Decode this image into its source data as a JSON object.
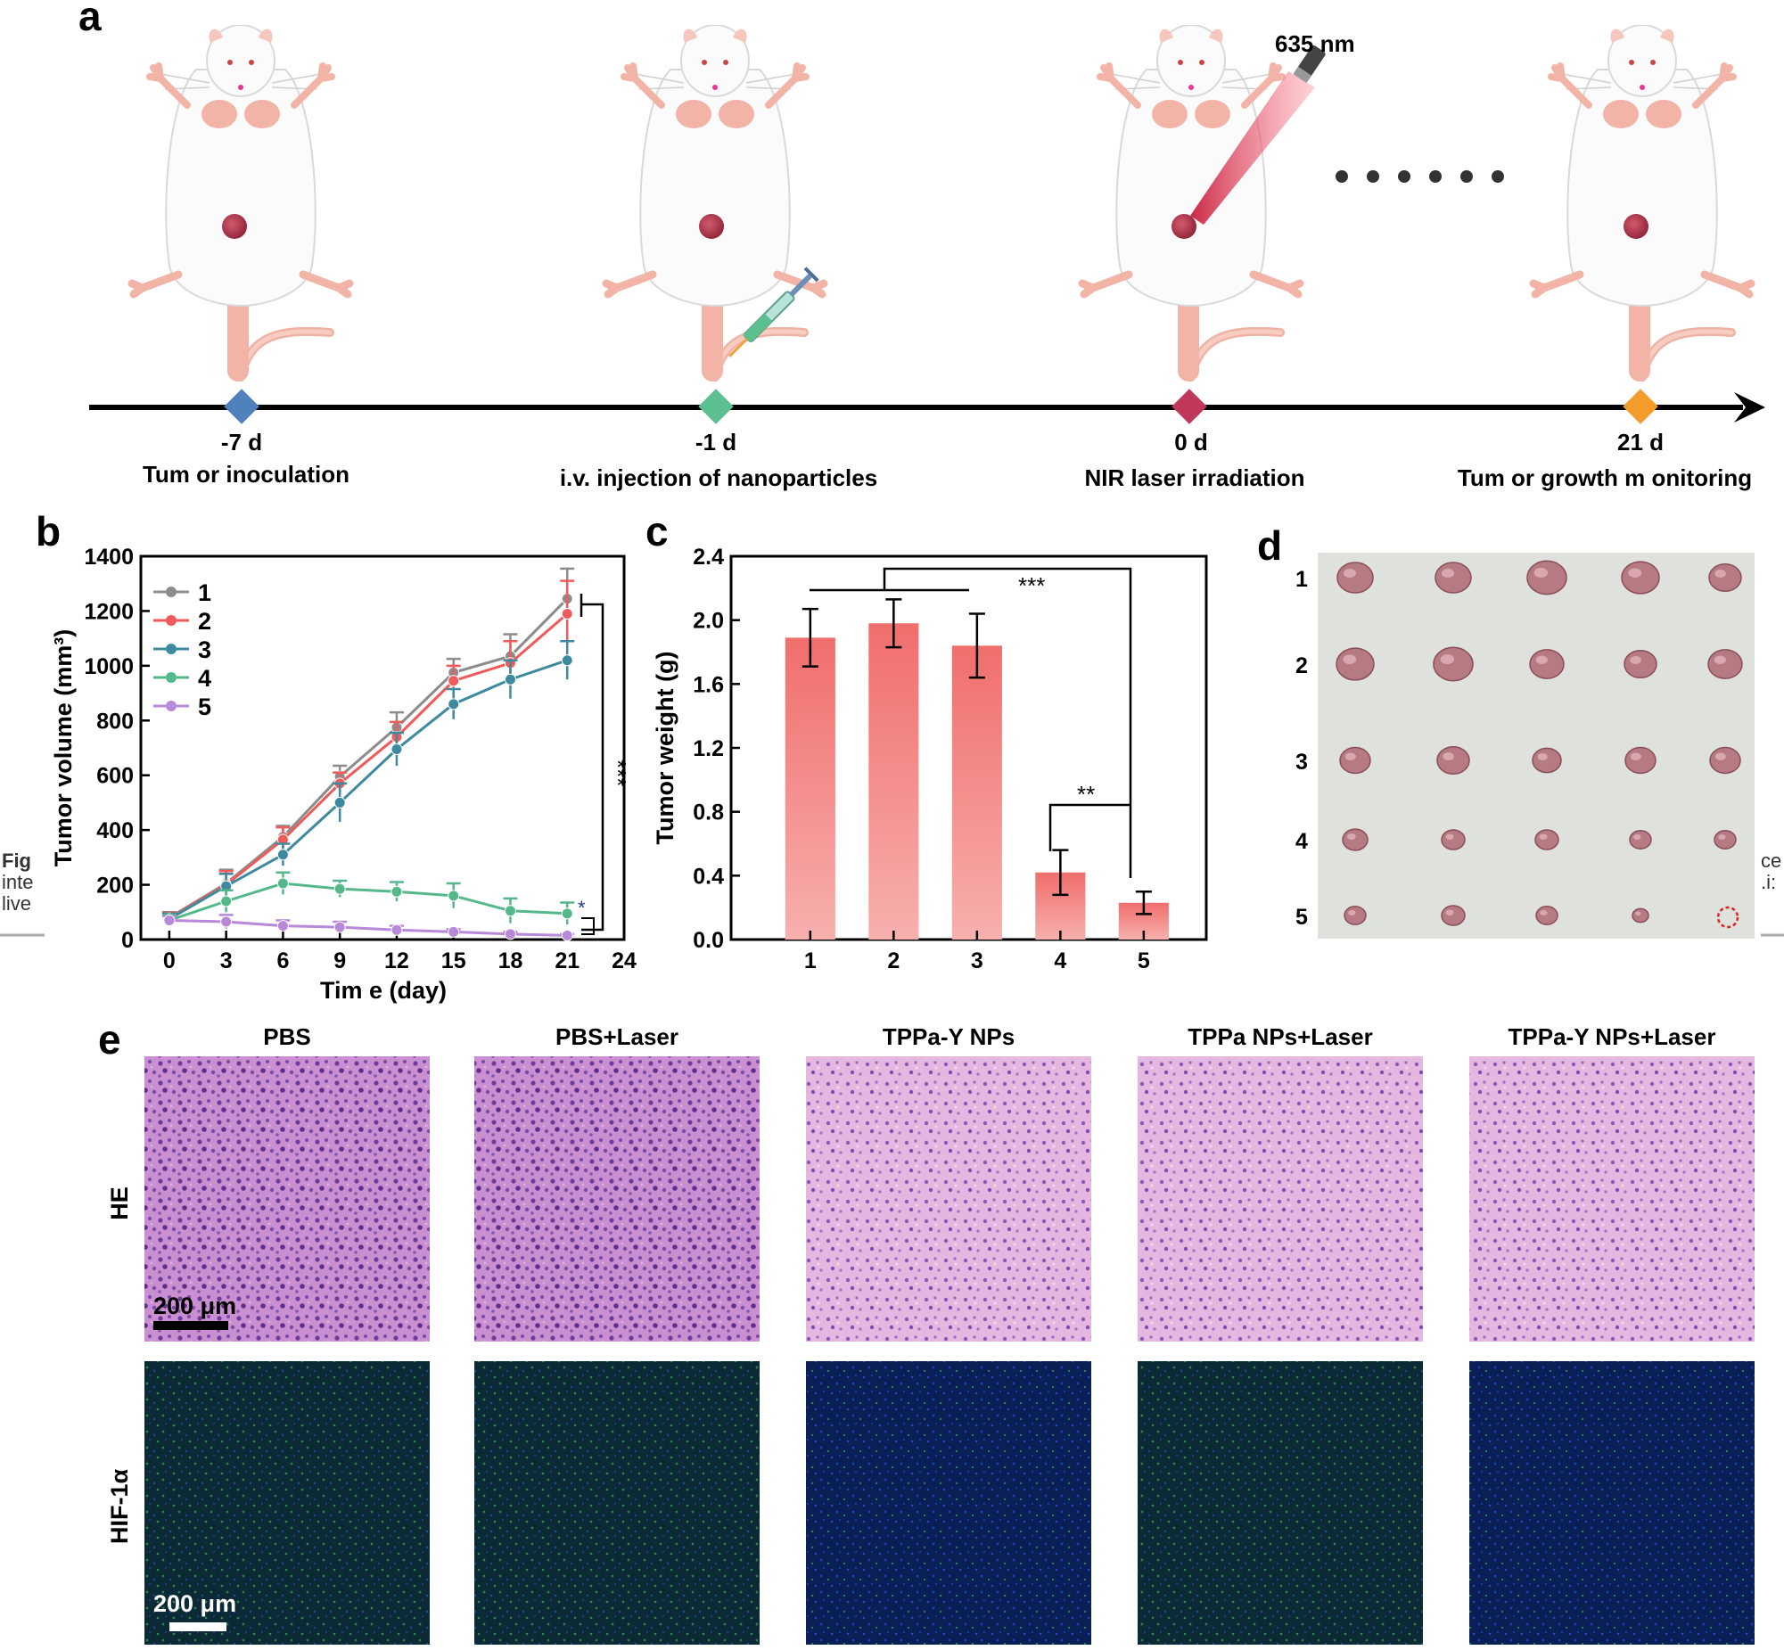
{
  "panel_a": {
    "label": "a",
    "laser_label": "635 nm",
    "timeline": [
      {
        "day": "-7 d",
        "event": "Tum or inoculation",
        "color": "#4f81bd"
      },
      {
        "day": "-1 d",
        "event": "i.v. injection of nanoparticles",
        "color": "#5cbf8f"
      },
      {
        "day": "0 d",
        "event": "NIR laser irradiation",
        "color": "#c0395a"
      },
      {
        "day": "21 d",
        "event": "Tum or growth m onitoring",
        "color": "#f39c2b"
      }
    ]
  },
  "panel_b": {
    "label": "b"
  },
  "panel_c": {
    "label": "c"
  },
  "panel_d": {
    "label": "d",
    "row_labels": [
      "1",
      "2",
      "3",
      "4",
      "5"
    ]
  },
  "panel_e": {
    "label": "e",
    "columns": [
      "PBS",
      "PBS+Laser",
      "TPPa-Y NPs",
      "TPPa NPs+Laser",
      "TPPa-Y NPs+Laser"
    ],
    "rows": [
      "HE",
      "HIF-1α"
    ],
    "scale_bar": "200 μm"
  },
  "bleed_text": {
    "left": [
      "Fig",
      "inte",
      "live"
    ],
    "right": [
      "ce",
      ".i:"
    ]
  },
  "chart_data": [
    {
      "type": "line",
      "xlabel": "Tim e (day)",
      "ylabel": "Tumor volume (mm³)",
      "xlim": [
        -1.5,
        24
      ],
      "ylim": [
        0,
        1400
      ],
      "x_ticks": [
        "0",
        "3",
        "6",
        "9",
        "12",
        "15",
        "18",
        "21",
        "24"
      ],
      "y_ticks": [
        "0",
        "200",
        "400",
        "600",
        "800",
        "1000",
        "1200",
        "1400"
      ],
      "x": [
        0,
        3,
        6,
        9,
        12,
        15,
        18,
        21
      ],
      "legend_position": "top-left",
      "series": [
        {
          "name": "1",
          "color": "#8c8c8c",
          "values": [
            80,
            205,
            375,
            595,
            775,
            975,
            1035,
            1245
          ],
          "errors": [
            20,
            50,
            40,
            40,
            55,
            50,
            80,
            110
          ]
        },
        {
          "name": "2",
          "color": "#f05a5a",
          "values": [
            78,
            200,
            365,
            570,
            740,
            945,
            1010,
            1190
          ],
          "errors": [
            20,
            50,
            45,
            40,
            55,
            55,
            80,
            120
          ]
        },
        {
          "name": "3",
          "color": "#3d8aa0",
          "values": [
            75,
            195,
            310,
            500,
            695,
            860,
            950,
            1020
          ],
          "errors": [
            20,
            45,
            40,
            70,
            60,
            55,
            70,
            70
          ]
        },
        {
          "name": "4",
          "color": "#55b88a",
          "values": [
            70,
            140,
            205,
            185,
            175,
            160,
            105,
            95
          ],
          "errors": [
            20,
            40,
            40,
            30,
            35,
            45,
            45,
            40
          ]
        },
        {
          "name": "5",
          "color": "#b888db",
          "values": [
            70,
            65,
            50,
            45,
            35,
            28,
            20,
            15
          ],
          "errors": [
            15,
            25,
            20,
            20,
            15,
            10,
            8,
            5
          ]
        }
      ],
      "significance": [
        "***",
        "*"
      ]
    },
    {
      "type": "bar",
      "ylabel": "Tumor weight (g)",
      "ylim": [
        0,
        2.4
      ],
      "y_ticks": [
        "0.0",
        "0.4",
        "0.8",
        "1.2",
        "1.6",
        "2.0",
        "2.4"
      ],
      "categories": [
        "1",
        "2",
        "3",
        "4",
        "5"
      ],
      "values": [
        1.89,
        1.98,
        1.84,
        0.42,
        0.23
      ],
      "errors": [
        0.18,
        0.15,
        0.2,
        0.14,
        0.07
      ],
      "color": "#f07a78",
      "significance": [
        "***",
        "**"
      ]
    }
  ]
}
